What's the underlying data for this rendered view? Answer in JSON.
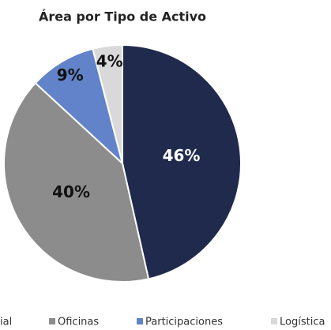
{
  "chart_data": {
    "type": "pie",
    "title": "Área por Tipo de Activo",
    "categories": [
      "ial",
      "Oficinas",
      "Participaciones",
      "Logística"
    ],
    "values": [
      46,
      40,
      9,
      4
    ],
    "value_labels": [
      "46%",
      "40%",
      "9%",
      "4%"
    ],
    "colors": [
      "#1f2a4d",
      "#8c8c8c",
      "#6283c9",
      "#d9d9d9"
    ],
    "legend": "bottom"
  }
}
